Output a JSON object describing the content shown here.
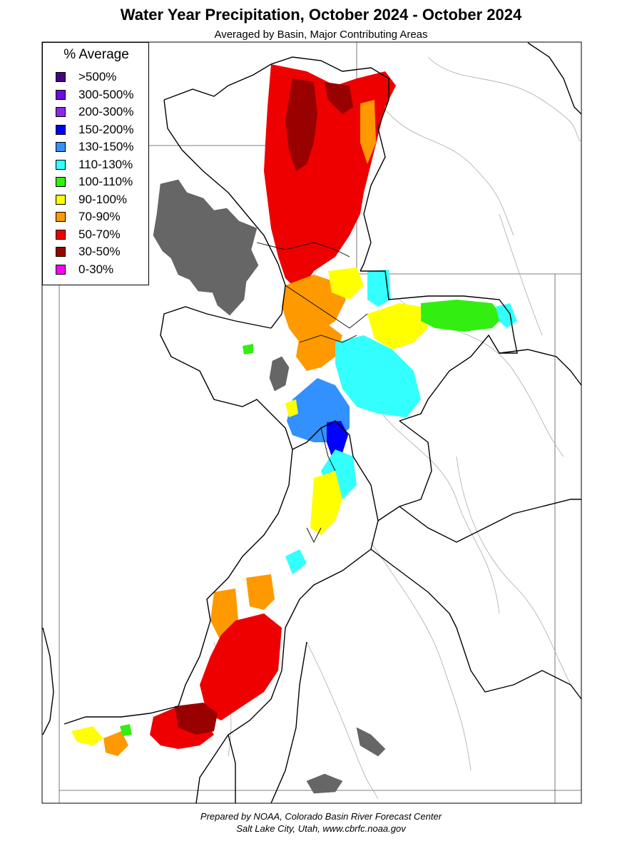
{
  "header": {
    "title": "Water Year Precipitation, October 2024 - October 2024",
    "subtitle": "Averaged by Basin, Major Contributing Areas"
  },
  "legend": {
    "title": "% Average",
    "items": [
      {
        "label": ">500%",
        "color": "#4B0082"
      },
      {
        "label": "300-500%",
        "color": "#6A0DDD"
      },
      {
        "label": "200-300%",
        "color": "#8A2BE2"
      },
      {
        "label": "150-200%",
        "color": "#0000FF"
      },
      {
        "label": "130-150%",
        "color": "#3390FF"
      },
      {
        "label": "110-130%",
        "color": "#33FFFF"
      },
      {
        "label": "100-110%",
        "color": "#33EE11"
      },
      {
        "label": "90-100%",
        "color": "#FFFF00"
      },
      {
        "label": "70-90%",
        "color": "#FF9900"
      },
      {
        "label": "50-70%",
        "color": "#EE0000"
      },
      {
        "label": "30-50%",
        "color": "#990000"
      },
      {
        "label": "0-30%",
        "color": "#FF00FF"
      }
    ]
  },
  "map": {
    "lake_color": "#666666",
    "river_color": "#aaaaaa",
    "border_color": "#000000"
  },
  "footer": {
    "line1": "Prepared by NOAA, Colorado Basin River Forecast Center",
    "line2": "Salt Lake City, Utah, www.cbrfc.noaa.gov"
  }
}
